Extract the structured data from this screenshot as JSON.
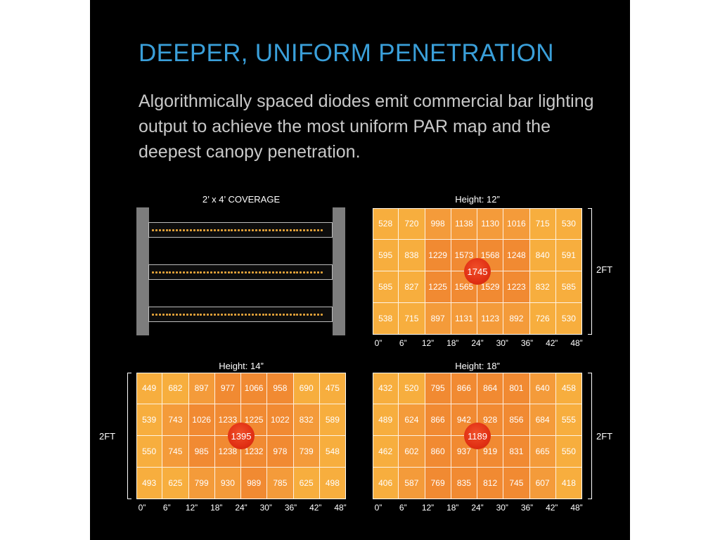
{
  "headline": "DEEPER, UNIFORM PENETRATION",
  "subtitle": "Algorithmically spaced diodes emit commercial bar lighting output to achieve the most uniform PAR map and the deepest canopy penetration.",
  "coverage_label": "2’ x 4’ COVERAGE",
  "colors": {
    "accent": "#3a9fd9",
    "panel": "#000000",
    "cell_light": "#f7ae3e",
    "cell_mid": "#f49b3a",
    "cell_dark": "#f18a32",
    "hotspot": "#e13014"
  },
  "chart_data": [
    {
      "type": "heatmap",
      "title": "Height: 12”",
      "side_label": "2FT",
      "x_ticks": [
        "0”",
        "6”",
        "12”",
        "18”",
        "24”",
        "30”",
        "36”",
        "42”",
        "48”"
      ],
      "rows": [
        [
          528,
          720,
          998,
          1138,
          1130,
          1016,
          715,
          530
        ],
        [
          595,
          838,
          1229,
          1573,
          1568,
          1248,
          840,
          591
        ],
        [
          585,
          827,
          1225,
          1565,
          1529,
          1223,
          832,
          585
        ],
        [
          538,
          715,
          897,
          1131,
          1123,
          892,
          726,
          530
        ]
      ],
      "peak": 1745
    },
    {
      "type": "heatmap",
      "title": "Height: 14”",
      "side_label": "2FT",
      "x_ticks": [
        "0”",
        "6”",
        "12”",
        "18”",
        "24”",
        "30”",
        "36”",
        "42”",
        "48”"
      ],
      "rows": [
        [
          449,
          682,
          897,
          977,
          1066,
          958,
          690,
          475
        ],
        [
          539,
          743,
          1026,
          1233,
          1225,
          1022,
          832,
          589
        ],
        [
          550,
          745,
          985,
          1238,
          1232,
          978,
          739,
          548
        ],
        [
          493,
          625,
          799,
          930,
          989,
          785,
          625,
          498
        ]
      ],
      "peak": 1395
    },
    {
      "type": "heatmap",
      "title": "Height: 18”",
      "side_label": "2FT",
      "x_ticks": [
        "0”",
        "6”",
        "12”",
        "18”",
        "24”",
        "30”",
        "36”",
        "42”",
        "48”"
      ],
      "rows": [
        [
          432,
          520,
          795,
          866,
          864,
          801,
          640,
          458
        ],
        [
          489,
          624,
          866,
          942,
          928,
          856,
          684,
          555
        ],
        [
          462,
          602,
          860,
          937,
          919,
          831,
          665,
          550
        ],
        [
          406,
          587,
          769,
          835,
          812,
          745,
          607,
          418
        ]
      ],
      "peak": 1189
    }
  ]
}
